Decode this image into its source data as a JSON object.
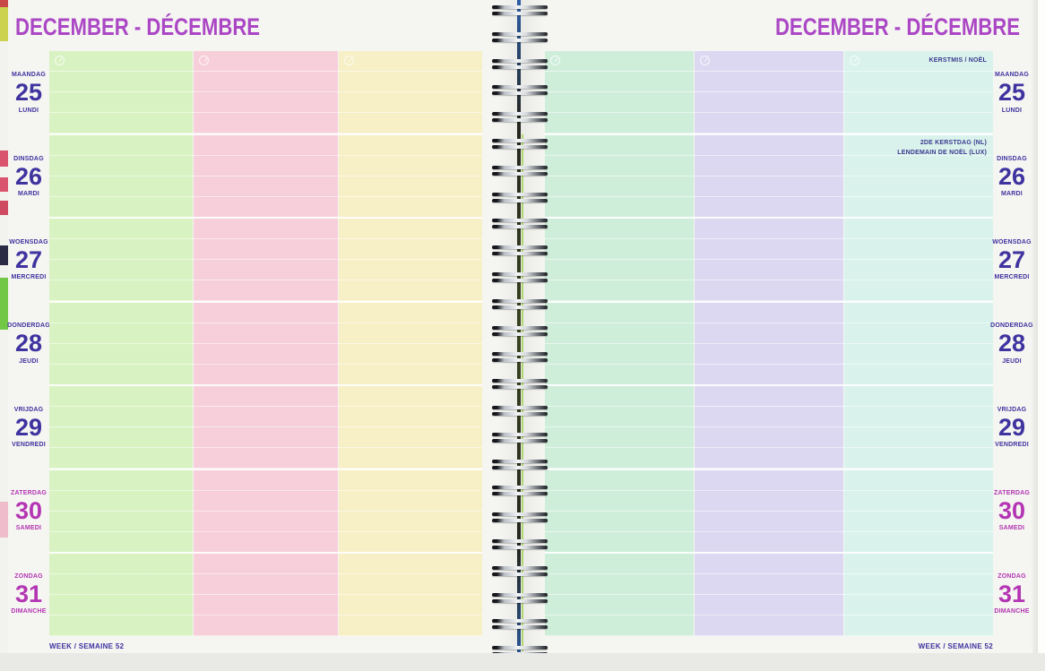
{
  "header": {
    "left_title": "DECEMBER - DÉCEMBRE",
    "right_title": "DECEMBER - DÉCEMBRE"
  },
  "footer": {
    "left": "WEEK / SEMAINE 52",
    "right": "WEEK / SEMAINE 52"
  },
  "week_number": "52",
  "days": [
    {
      "name_nl": "MAANDAG",
      "number": "25",
      "name_fr": "LUNDI",
      "weekend": false
    },
    {
      "name_nl": "DINSDAG",
      "number": "26",
      "name_fr": "MARDI",
      "weekend": false
    },
    {
      "name_nl": "WOENSDAG",
      "number": "27",
      "name_fr": "MERCREDI",
      "weekend": false
    },
    {
      "name_nl": "DONDERDAG",
      "number": "28",
      "name_fr": "JEUDI",
      "weekend": false
    },
    {
      "name_nl": "VRIJDAG",
      "number": "29",
      "name_fr": "VENDREDI",
      "weekend": false
    },
    {
      "name_nl": "ZATERDAG",
      "number": "30",
      "name_fr": "SAMEDI",
      "weekend": true
    },
    {
      "name_nl": "ZONDAG",
      "number": "31",
      "name_fr": "DIMANCHE",
      "weekend": true
    }
  ],
  "holidays": [
    {
      "day": "25",
      "lines": [
        "KERSTMIS / NOËL"
      ]
    },
    {
      "day": "26",
      "lines": [
        "2DE KERSTDAG (NL)",
        "LENDEMAIN DE NOËL (LUX)"
      ]
    }
  ],
  "colors": {
    "title": "#ab47c5",
    "weekday_text": "#3f33a0",
    "weekend_text": "#b335b3",
    "note_text": "#3a3a90",
    "left_page_columns": [
      "#d9f2c2",
      "#f7cfda",
      "#f7efc6"
    ],
    "right_page_columns": [
      "#cfeeda",
      "#ddd8f2",
      "#d9f3ec"
    ]
  },
  "icons": {
    "column_header": "clock-icon",
    "binding": "spiral-binding"
  }
}
